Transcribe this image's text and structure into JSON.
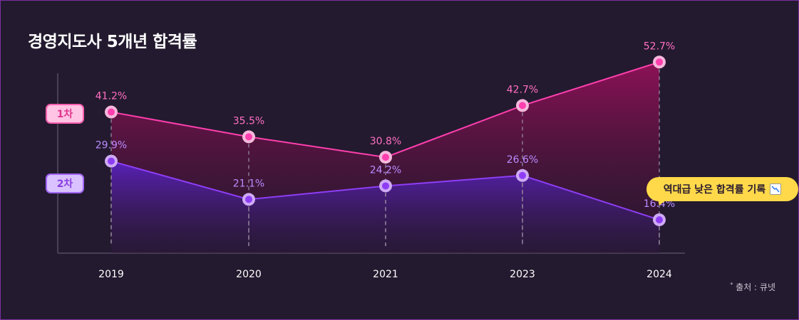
{
  "title": "경영지도사 5개년 합격률",
  "series_badges": {
    "first": "1차",
    "second": "2차"
  },
  "callout": {
    "text": "역대급 낮은 합격률 기록",
    "icon": "chart-decreasing-icon"
  },
  "source": {
    "mark": "*",
    "text": "출처 : 큐넷"
  },
  "colors": {
    "first": "#ff3fae",
    "second": "#8e3df5",
    "background": "#231a2f",
    "callout": "#ffd94a"
  },
  "chart_data": {
    "type": "area",
    "categories": [
      "2019",
      "2020",
      "2021",
      "2023",
      "2024"
    ],
    "series": [
      {
        "name": "1차",
        "values": [
          41.2,
          35.5,
          30.8,
          42.7,
          52.7
        ],
        "labels": [
          "41.2%",
          "35.5%",
          "30.8%",
          "42.7%",
          "52.7%"
        ]
      },
      {
        "name": "2차",
        "values": [
          29.9,
          21.1,
          24.2,
          26.6,
          16.4
        ],
        "labels": [
          "29.9%",
          "21.1%",
          "24.2%",
          "26.6%",
          "16.4%"
        ]
      }
    ],
    "unit": "%",
    "ylim": [
      3,
      57
    ],
    "grid": false,
    "legend": "left"
  }
}
